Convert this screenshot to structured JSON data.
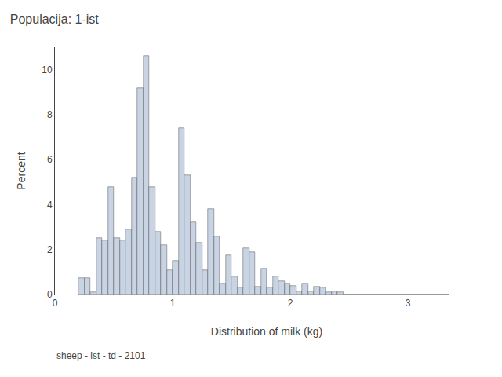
{
  "chart_data": {
    "type": "histogram",
    "title": "Populacija: 1-ist",
    "xlabel": "Distribution of milk (kg)",
    "ylabel": "Percent",
    "annotations": [
      "sheep - ist - td - 2101"
    ],
    "bins": [
      0.2,
      0.25,
      0.3,
      0.35,
      0.4,
      0.45,
      0.5,
      0.55,
      0.6,
      0.65,
      0.7,
      0.75,
      0.8,
      0.85,
      0.9,
      0.95,
      1.0,
      1.05,
      1.1,
      1.15,
      1.2,
      1.25,
      1.3,
      1.35,
      1.4,
      1.45,
      1.5,
      1.55,
      1.6,
      1.65,
      1.7,
      1.75,
      1.8,
      1.85,
      1.9,
      1.95,
      2.0,
      2.05,
      2.1,
      2.15,
      2.2,
      2.25,
      2.3,
      2.35,
      2.4,
      2.45,
      2.5,
      2.55,
      2.6,
      2.65,
      2.7,
      2.75,
      2.8,
      2.85,
      2.9,
      2.95,
      3.0,
      3.05,
      3.1,
      3.15,
      3.2,
      3.25,
      3.3,
      3.35
    ],
    "values": [
      0.75,
      0.75,
      0.1,
      2.5,
      2.4,
      4.8,
      2.5,
      2.4,
      2.9,
      5.2,
      9.2,
      10.6,
      4.8,
      2.8,
      2.2,
      1.1,
      1.5,
      7.4,
      5.3,
      3.2,
      2.3,
      1.1,
      3.8,
      2.6,
      0.5,
      1.75,
      0.8,
      0.3,
      2.05,
      1.9,
      0.35,
      1.15,
      0.3,
      0.8,
      0.6,
      0.5,
      0.4,
      0.15,
      0.5,
      0.15,
      0.35,
      0.3,
      0.1,
      0.15,
      0.1,
      0.0,
      0.0,
      0.0,
      0.0,
      0.0,
      0.0,
      0.0,
      0.0,
      0.0,
      0.0,
      0.0,
      0.0,
      0.0,
      0.0,
      0.0,
      0.0,
      0.0,
      0.0
    ],
    "color": "#c8d4e3",
    "xlim": [
      0,
      3.6
    ],
    "xticks": [
      0,
      1,
      2,
      3
    ],
    "ylim": [
      0,
      11
    ],
    "yticks": [
      0,
      2,
      4,
      6,
      8,
      10
    ],
    "grid": false
  }
}
